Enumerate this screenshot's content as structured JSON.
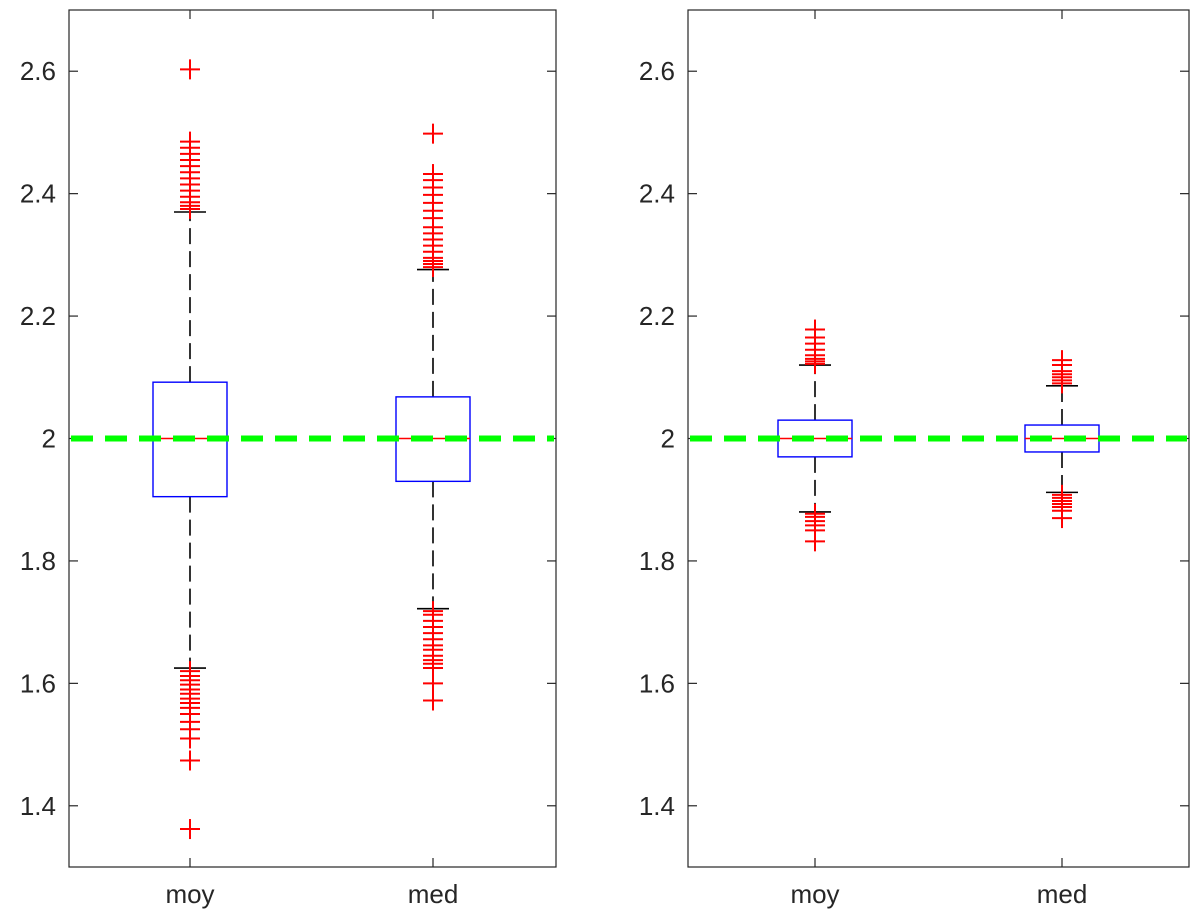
{
  "chart_data": [
    {
      "type": "box",
      "categories": [
        "moy",
        "med"
      ],
      "ylim": [
        1.3,
        2.7
      ],
      "yticks": [
        "1.4",
        "1.6",
        "1.8",
        "2",
        "2.2",
        "2.4",
        "2.6"
      ],
      "reference_line": {
        "y": 2.0,
        "color": "#00ff00",
        "style": "dashed"
      },
      "boxes": [
        {
          "category": "moy",
          "q1": 1.905,
          "median": 2.0,
          "q3": 2.092,
          "whisker_low": 1.625,
          "whisker_high": 2.37,
          "outliers": [
            1.362,
            1.474,
            1.51,
            1.525,
            1.537,
            1.55,
            1.56,
            1.568,
            1.575,
            1.583,
            1.59,
            1.598,
            1.605,
            1.612,
            1.62,
            2.375,
            2.38,
            2.386,
            2.395,
            2.405,
            2.415,
            2.425,
            2.435,
            2.445,
            2.455,
            2.465,
            2.475,
            2.485,
            2.603
          ]
        },
        {
          "category": "med",
          "q1": 1.93,
          "median": 2.0,
          "q3": 2.068,
          "whisker_low": 1.722,
          "whisker_high": 2.276,
          "outliers": [
            1.572,
            1.6,
            1.625,
            1.632,
            1.638,
            1.645,
            1.655,
            1.662,
            1.672,
            1.682,
            1.692,
            1.702,
            1.712,
            1.718,
            2.28,
            2.285,
            2.29,
            2.295,
            2.305,
            2.315,
            2.325,
            2.335,
            2.345,
            2.36,
            2.372,
            2.385,
            2.398,
            2.41,
            2.422,
            2.432,
            2.498
          ]
        }
      ],
      "colors": {
        "box": "#0000ff",
        "median": "#ff0000",
        "whisker": "#000000",
        "outlier": "#ff0000"
      }
    },
    {
      "type": "box",
      "categories": [
        "moy",
        "med"
      ],
      "ylim": [
        1.3,
        2.7
      ],
      "yticks": [
        "1.4",
        "1.6",
        "1.8",
        "2",
        "2.2",
        "2.4",
        "2.6"
      ],
      "reference_line": {
        "y": 2.0,
        "color": "#00ff00",
        "style": "dashed"
      },
      "boxes": [
        {
          "category": "moy",
          "q1": 1.97,
          "median": 2.0,
          "q3": 2.03,
          "whisker_low": 1.88,
          "whisker_high": 2.12,
          "outliers": [
            1.832,
            1.85,
            1.858,
            1.865,
            1.872,
            1.877,
            2.122,
            2.126,
            2.13,
            2.136,
            2.145,
            2.155,
            2.165,
            2.178
          ]
        },
        {
          "category": "med",
          "q1": 1.978,
          "median": 2.0,
          "q3": 2.022,
          "whisker_low": 1.912,
          "whisker_high": 2.086,
          "outliers": [
            1.87,
            1.882,
            1.888,
            1.893,
            1.898,
            1.903,
            1.908,
            2.09,
            2.095,
            2.1,
            2.105,
            2.11,
            2.12,
            2.128
          ]
        }
      ],
      "colors": {
        "box": "#0000ff",
        "median": "#ff0000",
        "whisker": "#000000",
        "outlier": "#ff0000"
      }
    }
  ]
}
